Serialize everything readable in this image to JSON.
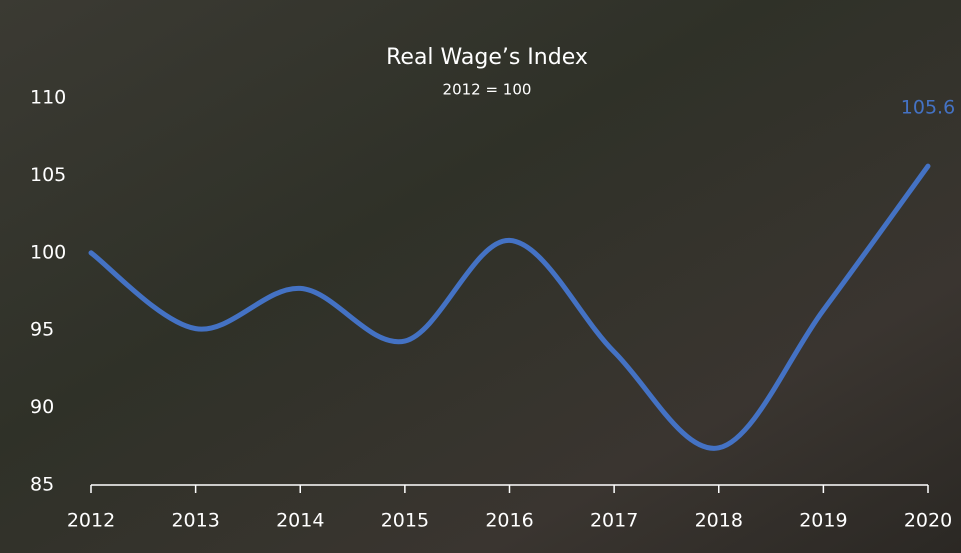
{
  "chart_data": {
    "type": "line",
    "title": "Real Wage’s Index",
    "subtitle": "2012 = 100",
    "categories": [
      "2012",
      "2013",
      "2014",
      "2015",
      "2016",
      "2017",
      "2018",
      "2019",
      "2020"
    ],
    "series": [
      {
        "name": "Real Wage’s Index",
        "color": "#4472c4",
        "values": [
          100,
          95.1,
          97.7,
          94.3,
          100.8,
          93.6,
          87.4,
          96.3,
          105.6
        ]
      }
    ],
    "ylim": [
      85,
      110
    ],
    "yticks": [
      85,
      90,
      95,
      100,
      105,
      110
    ],
    "grid": false
  }
}
